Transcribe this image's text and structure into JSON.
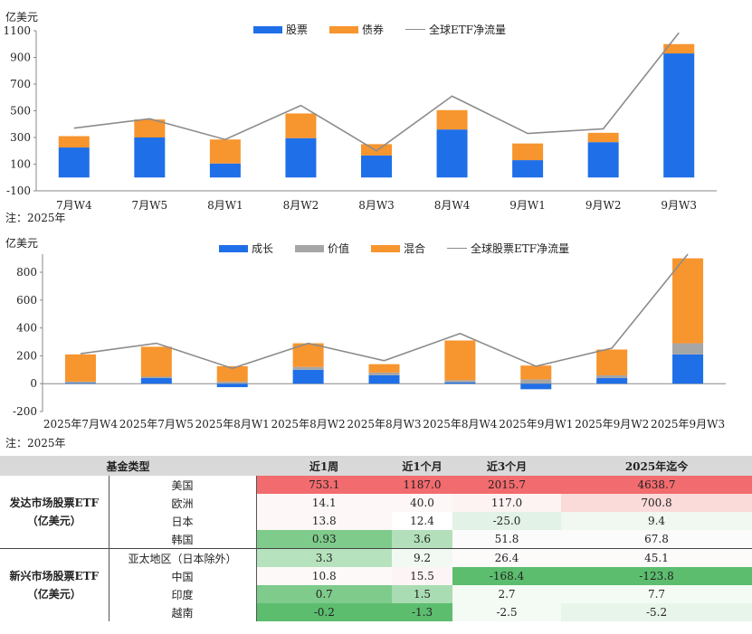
{
  "colors": {
    "stock": "#1f6fe8",
    "bond": "#f7952e",
    "line": "#8c8c8c",
    "growth": "#1f6fe8",
    "value": "#a6a6a6",
    "mixed": "#f7952e"
  },
  "chart_data": [
    {
      "type": "bar",
      "stacked": true,
      "unit": "亿美元",
      "note": "注：2025年",
      "categories": [
        "7月W4",
        "7月W5",
        "8月W1",
        "8月W2",
        "8月W3",
        "8月W4",
        "9月W1",
        "9月W2",
        "9月W3"
      ],
      "series": [
        {
          "name": "股票",
          "values": [
            225,
            300,
            105,
            295,
            165,
            360,
            130,
            265,
            930
          ]
        },
        {
          "name": "债券",
          "values": [
            85,
            135,
            180,
            185,
            85,
            145,
            125,
            70,
            70
          ]
        }
      ],
      "line": {
        "name": "全球ETF净流量",
        "values": [
          370,
          440,
          285,
          540,
          200,
          610,
          330,
          365,
          1085
        ]
      },
      "yticks": [
        -100,
        100,
        300,
        500,
        700,
        900,
        1100
      ],
      "ylim": [
        -100,
        1100
      ]
    },
    {
      "type": "bar",
      "stacked": true,
      "unit": "亿美元",
      "note": "注：2025年",
      "categories": [
        "2025年7月W4",
        "2025年7月W5",
        "2025年8月W1",
        "2025年8月W2",
        "2025年8月W3",
        "2025年8月W4",
        "2025年9月W1",
        "2025年9月W2",
        "2025年9月W3"
      ],
      "series": [
        {
          "name": "成长",
          "values": [
            5,
            40,
            -25,
            100,
            60,
            10,
            -40,
            40,
            210
          ]
        },
        {
          "name": "价值",
          "values": [
            10,
            10,
            15,
            20,
            20,
            15,
            30,
            20,
            80
          ]
        },
        {
          "name": "混合",
          "values": [
            195,
            215,
            110,
            170,
            60,
            285,
            100,
            185,
            610
          ]
        }
      ],
      "line": {
        "name": "全球股票ETF净流量",
        "values": [
          215,
          290,
          110,
          290,
          165,
          360,
          125,
          255,
          930
        ]
      },
      "yticks": [
        -200,
        0,
        200,
        400,
        600,
        800
      ],
      "ylim": [
        -200,
        930
      ]
    }
  ],
  "table": {
    "headers": [
      "基金类型",
      "近1周",
      "近1个月",
      "近3个月",
      "2025年迄今"
    ],
    "groups": [
      {
        "label": "发达市场股票ETF（亿美元）",
        "rows": [
          {
            "name": "美国",
            "values": [
              "753.1",
              "1187.0",
              "2015.7",
              "4638.7"
            ],
            "bg": [
              "#f26b6e",
              "#f26b6e",
              "#f26b6e",
              "#f26b6e"
            ]
          },
          {
            "name": "欧洲",
            "values": [
              "14.1",
              "40.0",
              "117.0",
              "700.8"
            ],
            "bg": [
              "#fdf7f7",
              "#fdf7f7",
              "#fdf3f3",
              "#fbdada"
            ]
          },
          {
            "name": "日本",
            "values": [
              "13.8",
              "12.4",
              "-25.0",
              "9.4"
            ],
            "bg": [
              "#fdf7f7",
              "#ffffff",
              "#e3f2e6",
              "#f0f8f1"
            ]
          },
          {
            "name": "韩国",
            "values": [
              "0.93",
              "3.6",
              "51.8",
              "67.8"
            ],
            "bg": [
              "#7ecb8b",
              "#b3e0ba",
              "#fbfbfb",
              "#fbfbfb"
            ]
          }
        ]
      },
      {
        "label": "新兴市场股票ETF（亿美元）",
        "rows": [
          {
            "name": "亚太地区（日本除外）",
            "values": [
              "3.3",
              "9.2",
              "26.4",
              "45.1"
            ],
            "bg": [
              "#b6e2bd",
              "#f2f9f3",
              "#fdfafa",
              "#fdfafa"
            ]
          },
          {
            "name": "中国",
            "values": [
              "10.8",
              "15.5",
              "-168.4",
              "-123.8"
            ],
            "bg": [
              "#fdf9f9",
              "#fdf5f5",
              "#5cbd6e",
              "#5cbd6e"
            ]
          },
          {
            "name": "印度",
            "values": [
              "0.7",
              "1.5",
              "2.7",
              "7.7"
            ],
            "bg": [
              "#7ecb8b",
              "#a9dcb2",
              "#f4fbf5",
              "#f4fbf5"
            ]
          },
          {
            "name": "越南",
            "values": [
              "-0.2",
              "-1.3",
              "-2.5",
              "-5.2"
            ],
            "bg": [
              "#5cbd6e",
              "#5cbd6e",
              "#f4fbf5",
              "#e8f5ea"
            ]
          }
        ]
      }
    ]
  }
}
